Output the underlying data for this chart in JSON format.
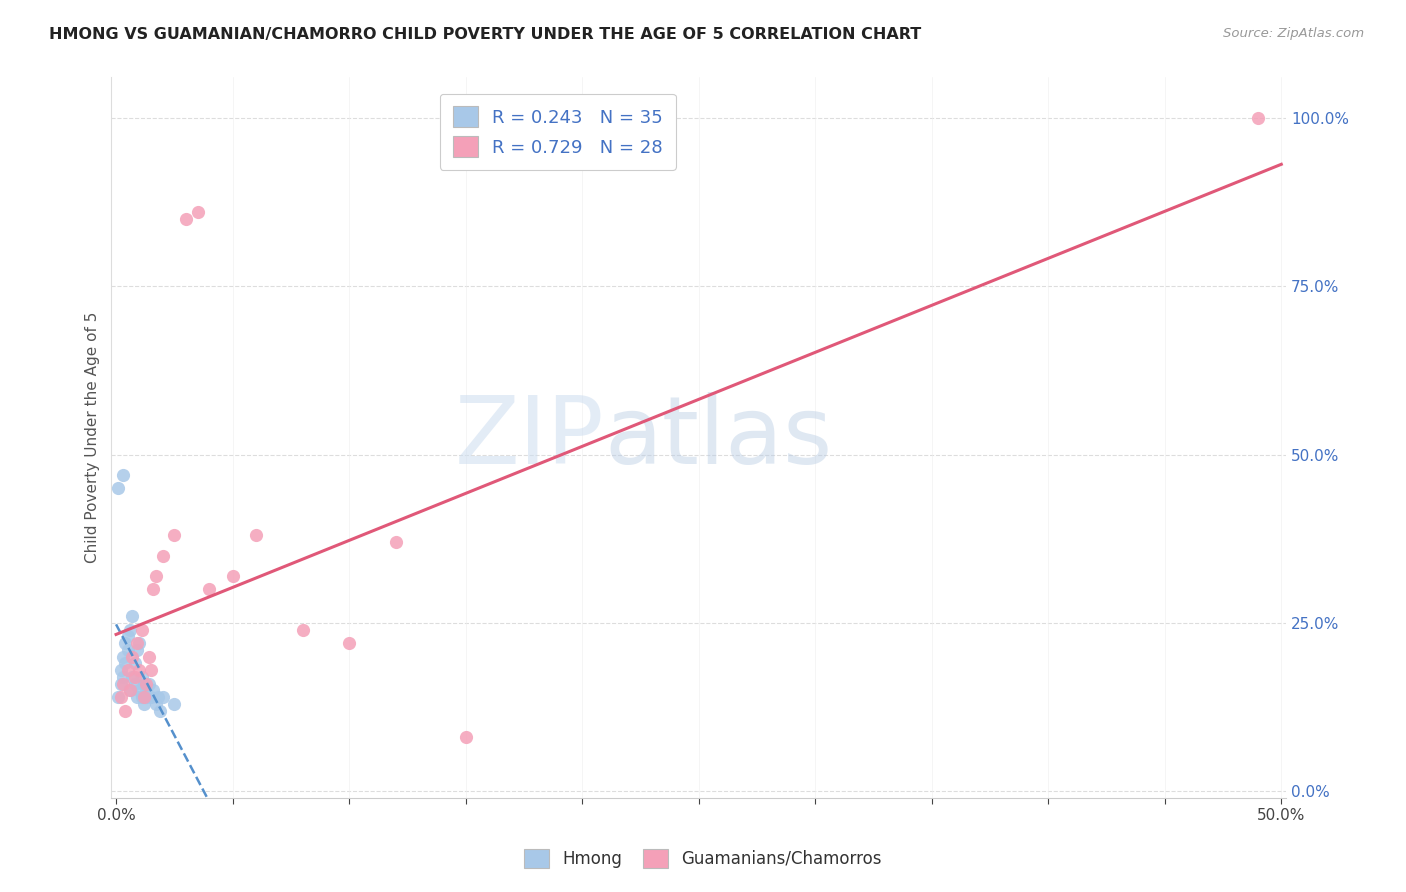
{
  "title": "HMONG VS GUAMANIAN/CHAMORRO CHILD POVERTY UNDER THE AGE OF 5 CORRELATION CHART",
  "source": "Source: ZipAtlas.com",
  "ylabel": "Child Poverty Under the Age of 5",
  "xlim": [
    0,
    0.5
  ],
  "ylim": [
    0,
    1.05
  ],
  "xtick_positions": [
    0.0,
    0.05,
    0.1,
    0.15,
    0.2,
    0.25,
    0.3,
    0.35,
    0.4,
    0.45,
    0.5
  ],
  "xticklabels_shown": {
    "0.0": "0.0%",
    "0.5": "50.0%"
  },
  "yticks_right": [
    0.0,
    0.25,
    0.5,
    0.75,
    1.0
  ],
  "yticklabels_right": [
    "0.0%",
    "25.0%",
    "50.0%",
    "75.0%",
    "100.0%"
  ],
  "hmong_R": 0.243,
  "hmong_N": 35,
  "guam_R": 0.729,
  "guam_N": 28,
  "hmong_color": "#a8c8e8",
  "guam_color": "#f4a0b8",
  "hmong_line_color": "#5590cc",
  "guam_line_color": "#e05878",
  "legend_label_hmong": "Hmong",
  "legend_label_guam": "Guamanians/Chamorros",
  "watermark_zip": "ZIP",
  "watermark_atlas": "atlas",
  "background_color": "#ffffff",
  "grid_color": "#dddddd",
  "title_color": "#222222",
  "axis_label_color": "#555555",
  "right_tick_color": "#4472c4",
  "hmong_x": [
    0.001,
    0.002,
    0.002,
    0.003,
    0.003,
    0.004,
    0.004,
    0.005,
    0.005,
    0.006,
    0.006,
    0.007,
    0.007,
    0.008,
    0.008,
    0.009,
    0.009,
    0.01,
    0.01,
    0.011,
    0.011,
    0.012,
    0.012,
    0.013,
    0.013,
    0.014,
    0.015,
    0.016,
    0.017,
    0.018,
    0.019,
    0.02,
    0.025,
    0.001,
    0.003
  ],
  "hmong_y": [
    0.14,
    0.16,
    0.18,
    0.2,
    0.17,
    0.22,
    0.19,
    0.21,
    0.23,
    0.24,
    0.15,
    0.26,
    0.17,
    0.19,
    0.16,
    0.21,
    0.14,
    0.22,
    0.15,
    0.17,
    0.14,
    0.16,
    0.13,
    0.15,
    0.14,
    0.16,
    0.14,
    0.15,
    0.13,
    0.14,
    0.12,
    0.14,
    0.13,
    0.45,
    0.47
  ],
  "guam_x": [
    0.002,
    0.003,
    0.004,
    0.005,
    0.006,
    0.007,
    0.008,
    0.009,
    0.01,
    0.011,
    0.012,
    0.013,
    0.014,
    0.015,
    0.016,
    0.017,
    0.02,
    0.025,
    0.03,
    0.035,
    0.04,
    0.05,
    0.06,
    0.08,
    0.1,
    0.12,
    0.15,
    0.49
  ],
  "guam_y": [
    0.14,
    0.16,
    0.12,
    0.18,
    0.15,
    0.2,
    0.17,
    0.22,
    0.18,
    0.24,
    0.14,
    0.16,
    0.2,
    0.18,
    0.3,
    0.32,
    0.35,
    0.38,
    0.85,
    0.86,
    0.3,
    0.32,
    0.38,
    0.24,
    0.22,
    0.37,
    0.08,
    1.0
  ]
}
